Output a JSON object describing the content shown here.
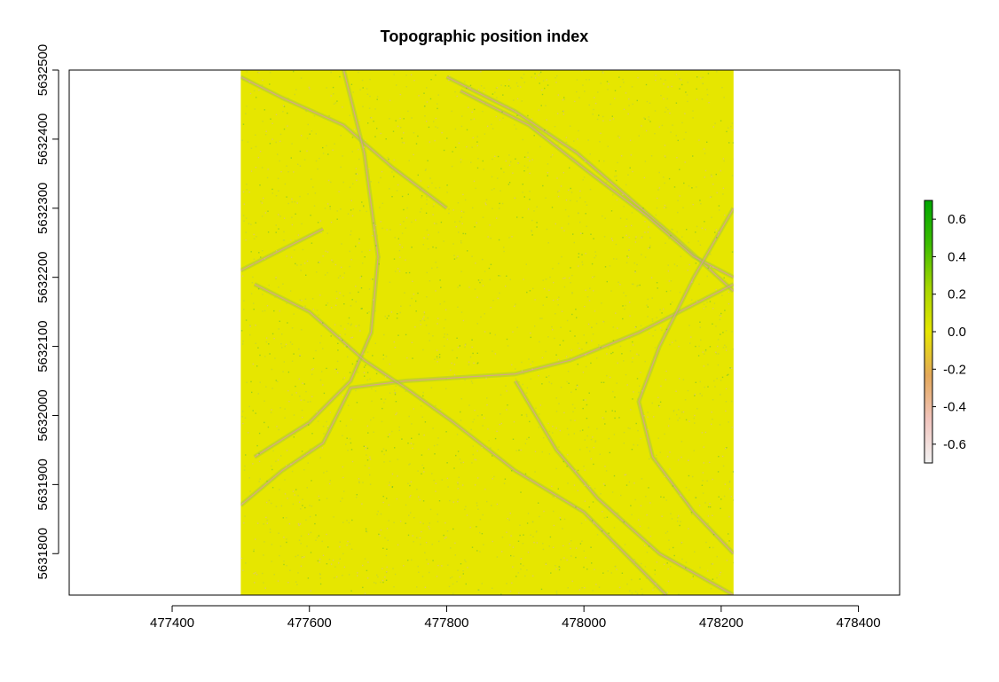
{
  "chart_data": {
    "type": "heatmap",
    "title": "Topographic position index",
    "xlabel": "",
    "ylabel": "",
    "xlim": [
      477250,
      478460
    ],
    "ylim": [
      5631740,
      5632500
    ],
    "x_ticks": [
      477400,
      477600,
      477800,
      478000,
      478200,
      478400
    ],
    "y_ticks": [
      5631800,
      5631900,
      5632000,
      5632100,
      5632200,
      5632300,
      5632400,
      5632500
    ],
    "raster_extent": {
      "xmin": 477500,
      "xmax": 478218,
      "ymin": 5631740,
      "ymax": 5632500
    },
    "dominant_value": 0.0,
    "legend": {
      "placement": "right",
      "min": -0.7,
      "max": 0.7,
      "ticks": [
        0.6,
        0.4,
        0.2,
        0.0,
        -0.2,
        -0.4,
        -0.6
      ],
      "tick_labels": [
        "0.6",
        "0.4",
        "0.2",
        "0.0",
        "-0.2",
        "-0.4",
        "-0.6"
      ],
      "colors": [
        "#f2f2f2",
        "#f1c4bd",
        "#e4a85a",
        "#e6e600",
        "#a6d600",
        "#3dbd00",
        "#00a600"
      ]
    },
    "features": [
      {
        "kind": "channel",
        "points": [
          [
            477500,
            5632490
          ],
          [
            477560,
            5632460
          ],
          [
            477650,
            5632420
          ],
          [
            477720,
            5632360
          ],
          [
            477800,
            5632300
          ]
        ]
      },
      {
        "kind": "channel",
        "points": [
          [
            477650,
            5632500
          ],
          [
            477680,
            5632380
          ],
          [
            477700,
            5632230
          ],
          [
            477690,
            5632120
          ],
          [
            477660,
            5632050
          ],
          [
            477600,
            5631990
          ],
          [
            477520,
            5631940
          ]
        ]
      },
      {
        "kind": "channel",
        "points": [
          [
            477800,
            5632490
          ],
          [
            477900,
            5632440
          ],
          [
            477990,
            5632380
          ],
          [
            478060,
            5632320
          ],
          [
            478130,
            5632260
          ],
          [
            478218,
            5632180
          ]
        ]
      },
      {
        "kind": "channel",
        "points": [
          [
            477820,
            5632470
          ],
          [
            477920,
            5632420
          ],
          [
            478010,
            5632350
          ],
          [
            478090,
            5632290
          ],
          [
            478160,
            5632230
          ],
          [
            478218,
            5632200
          ]
        ]
      },
      {
        "kind": "channel",
        "points": [
          [
            477500,
            5631870
          ],
          [
            477560,
            5631920
          ],
          [
            477620,
            5631960
          ],
          [
            477660,
            5632040
          ],
          [
            477740,
            5632050
          ],
          [
            477900,
            5632060
          ],
          [
            477980,
            5632080
          ],
          [
            478080,
            5632120
          ],
          [
            478218,
            5632190
          ]
        ]
      },
      {
        "kind": "channel",
        "points": [
          [
            477520,
            5632190
          ],
          [
            477600,
            5632150
          ],
          [
            477680,
            5632080
          ],
          [
            477740,
            5632040
          ],
          [
            477810,
            5631990
          ],
          [
            477900,
            5631920
          ],
          [
            478000,
            5631860
          ],
          [
            478080,
            5631780
          ],
          [
            478120,
            5631740
          ]
        ]
      },
      {
        "kind": "channel",
        "points": [
          [
            477900,
            5632050
          ],
          [
            477960,
            5631950
          ],
          [
            478020,
            5631880
          ],
          [
            478110,
            5631800
          ],
          [
            478218,
            5631740
          ]
        ]
      },
      {
        "kind": "channel",
        "points": [
          [
            478218,
            5632300
          ],
          [
            478160,
            5632200
          ],
          [
            478110,
            5632100
          ],
          [
            478080,
            5632020
          ],
          [
            478100,
            5631940
          ],
          [
            478160,
            5631860
          ],
          [
            478218,
            5631800
          ]
        ]
      },
      {
        "kind": "channel",
        "points": [
          [
            477500,
            5632210
          ],
          [
            477560,
            5632240
          ],
          [
            477620,
            5632270
          ]
        ]
      }
    ]
  }
}
